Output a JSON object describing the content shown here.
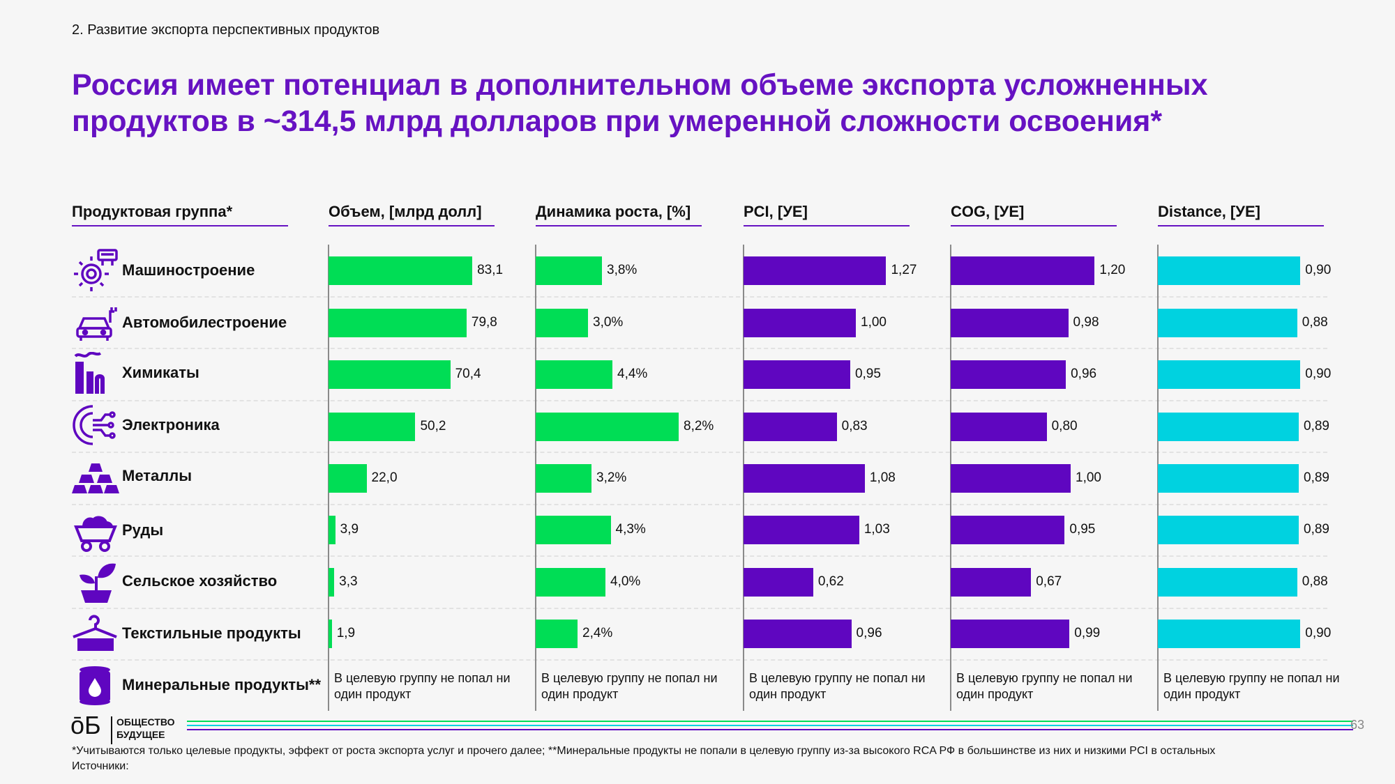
{
  "header": {
    "section": "2. Развитие экспорта перспективных продуктов",
    "title": "Россия имеет потенциал в дополнительном объеме экспорта усложненных продуктов в ~314,5 млрд долларов при умеренной сложности освоения*"
  },
  "colors": {
    "title": "#6612c2",
    "green": "#00dd55",
    "purple": "#5f06c0",
    "cyan": "#00d2e0"
  },
  "chart_data": {
    "type": "bar",
    "orientation": "horizontal",
    "category_header": "Продуктовая группа*",
    "categories": [
      "Машиностроение",
      "Автомобилестроение",
      "Химикаты",
      "Электроника",
      "Металлы",
      "Руды",
      "Сельское хозяйство",
      "Текстильные продукты"
    ],
    "excluded_category": "Минеральные продукты**",
    "excluded_note": "В целевую группу не попал ни один продукт",
    "series": [
      {
        "name": "Объем, [млрд долл]",
        "color": "#00dd55",
        "values": [
          83.1,
          79.8,
          70.4,
          50.2,
          22.0,
          3.9,
          3.3,
          1.9
        ],
        "labels": [
          "83,1",
          "79,8",
          "70,4",
          "50,2",
          "22,0",
          "3,9",
          "3,3",
          "1,9"
        ]
      },
      {
        "name": "Динамика роста, [%]",
        "color": "#00dd55",
        "values": [
          3.8,
          3.0,
          4.4,
          8.2,
          3.2,
          4.3,
          4.0,
          2.4
        ],
        "labels": [
          "3,8%",
          "3,0%",
          "4,4%",
          "8,2%",
          "3,2%",
          "4,3%",
          "4,0%",
          "2,4%"
        ]
      },
      {
        "name": "PCI, [УЕ]",
        "color": "#5f06c0",
        "values": [
          1.27,
          1.0,
          0.95,
          0.83,
          1.08,
          1.03,
          0.62,
          0.96
        ],
        "labels": [
          "1,27",
          "1,00",
          "0,95",
          "0,83",
          "1,08",
          "1,03",
          "0,62",
          "0,96"
        ]
      },
      {
        "name": "COG, [УЕ]",
        "color": "#5f06c0",
        "values": [
          1.2,
          0.98,
          0.96,
          0.8,
          1.0,
          0.95,
          0.67,
          0.99
        ],
        "labels": [
          "1,20",
          "0,98",
          "0,96",
          "0,80",
          "1,00",
          "0,95",
          "0,67",
          "0,99"
        ]
      },
      {
        "name": "Distance, [УЕ]",
        "color": "#00d2e0",
        "values": [
          0.9,
          0.88,
          0.9,
          0.89,
          0.89,
          0.89,
          0.88,
          0.9
        ],
        "labels": [
          "0,90",
          "0,88",
          "0,90",
          "0,89",
          "0,89",
          "0,89",
          "0,88",
          "0,90"
        ]
      }
    ]
  },
  "icons": [
    "gear-machine-icon",
    "car-icon",
    "factory-icon",
    "circuit-gear-icon",
    "gold-bars-icon",
    "mine-cart-icon",
    "sprout-icon",
    "hanger-shirt-icon",
    "barrel-icon"
  ],
  "logo": {
    "mark": "ōБ",
    "text_line1": "ОБЩЕСТВО",
    "text_line2": "БУДУЩЕЕ"
  },
  "page_number": "63",
  "footnote": {
    "line1": "*Учитываются только целевые продукты, эффект от роста экспорта услуг и прочего далее; **Минеральные продукты не попали в целевую группу из-за высокого RCA РФ в большинстве из них и низкими PCI в остальных",
    "line2": "Источники:"
  }
}
